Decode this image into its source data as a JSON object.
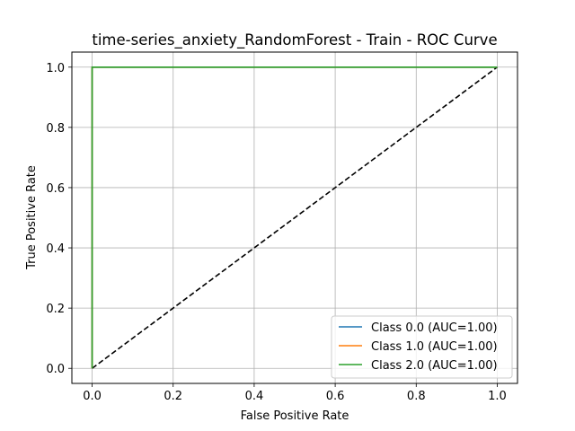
{
  "chart_data": {
    "type": "line",
    "title": "time-series_anxiety_RandomForest - Train - ROC Curve",
    "xlabel": "False Positive Rate",
    "ylabel": "True Positive Rate",
    "xlim": [
      -0.05,
      1.05
    ],
    "ylim": [
      -0.05,
      1.05
    ],
    "xticks": [
      "0.0",
      "0.2",
      "0.4",
      "0.6",
      "0.8",
      "1.0"
    ],
    "yticks": [
      "0.0",
      "0.2",
      "0.4",
      "0.6",
      "0.8",
      "1.0"
    ],
    "grid": true,
    "legend_position": "lower-right",
    "series": [
      {
        "name": "Class 0.0 (AUC=1.00)",
        "color": "#1f77b4",
        "x": [
          0.0,
          0.0,
          1.0
        ],
        "y": [
          0.0,
          1.0,
          1.0
        ]
      },
      {
        "name": "Class 1.0 (AUC=1.00)",
        "color": "#ff7f0e",
        "x": [
          0.0,
          0.0,
          1.0
        ],
        "y": [
          0.0,
          1.0,
          1.0
        ]
      },
      {
        "name": "Class 2.0 (AUC=1.00)",
        "color": "#2ca02c",
        "x": [
          0.0,
          0.0,
          1.0
        ],
        "y": [
          0.0,
          1.0,
          1.0
        ]
      }
    ],
    "reference_line": {
      "x": [
        0,
        1
      ],
      "y": [
        0,
        1
      ],
      "color": "#000000",
      "style": "dashed"
    }
  }
}
